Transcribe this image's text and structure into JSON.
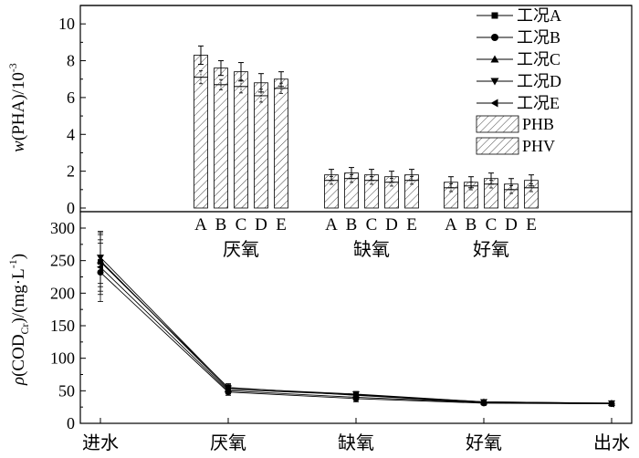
{
  "chart_data": [
    {
      "type": "bar",
      "ylabel": "w(PHA)/10⁻³",
      "ylabel_parts": {
        "w": "w",
        "rest": "(PHA)/10",
        "sup": "-3"
      },
      "ylim": [
        0,
        11
      ],
      "yticks": [
        "0",
        "2",
        "4",
        "6",
        "8",
        "10"
      ],
      "group_labels": [
        "厌氧",
        "缺氧",
        "好氧"
      ],
      "categories": [
        "A",
        "B",
        "C",
        "D",
        "E"
      ],
      "series": [
        {
          "name": "PHB",
          "values": [
            [
              7.1,
              6.7,
              6.6,
              6.1,
              6.5
            ],
            [
              1.5,
              1.6,
              1.5,
              1.4,
              1.5
            ],
            [
              1.1,
              1.2,
              1.3,
              1.0,
              1.1
            ]
          ]
        },
        {
          "name": "PHV",
          "values": [
            [
              1.2,
              0.9,
              0.8,
              0.7,
              0.5
            ],
            [
              0.3,
              0.3,
              0.3,
              0.3,
              0.3
            ],
            [
              0.3,
              0.2,
              0.3,
              0.3,
              0.4
            ]
          ]
        }
      ],
      "totals": [
        [
          8.3,
          7.6,
          7.4,
          6.8,
          7.0
        ],
        [
          1.8,
          1.9,
          1.8,
          1.7,
          1.8
        ],
        [
          1.4,
          1.4,
          1.6,
          1.3,
          1.5
        ]
      ],
      "errors": [
        [
          0.5,
          0.4,
          0.5,
          0.5,
          0.4
        ],
        [
          0.3,
          0.3,
          0.3,
          0.3,
          0.3
        ],
        [
          0.3,
          0.3,
          0.3,
          0.3,
          0.3
        ]
      ],
      "legend": {
        "placement": "top-right",
        "line_entries": [
          {
            "name": "工况A",
            "marker": "square"
          },
          {
            "name": "工况B",
            "marker": "circle"
          },
          {
            "name": "工况C",
            "marker": "triangle-up"
          },
          {
            "name": "工况D",
            "marker": "triangle-down"
          },
          {
            "name": "工况E",
            "marker": "triangle-left"
          }
        ],
        "bar_entries": [
          "PHB",
          "PHV"
        ]
      }
    },
    {
      "type": "line",
      "ylabel_parts": {
        "rho": "ρ",
        "p1": "(COD",
        "sub": "Cr",
        "p2": ")/(mg·L",
        "sup": "-1",
        "p3": ")"
      },
      "ylim": [
        0,
        300
      ],
      "yticks": [
        "0",
        "50",
        "100",
        "150",
        "200",
        "250",
        "300"
      ],
      "x": [
        "进水",
        "厌氧",
        "缺氧",
        "好氧",
        "出水"
      ],
      "series": [
        {
          "name": "工况A",
          "marker": "square",
          "values": [
            248,
            55,
            43,
            32,
            30
          ],
          "errors": [
            45,
            6,
            5,
            3,
            2
          ]
        },
        {
          "name": "工况B",
          "marker": "circle",
          "values": [
            232,
            48,
            38,
            31,
            30
          ],
          "errors": [
            45,
            5,
            5,
            3,
            2
          ]
        },
        {
          "name": "工况C",
          "marker": "triangle-up",
          "values": [
            250,
            52,
            44,
            33,
            31
          ],
          "errors": [
            40,
            6,
            4,
            3,
            2
          ]
        },
        {
          "name": "工况D",
          "marker": "triangle-down",
          "values": [
            255,
            54,
            45,
            33,
            31
          ],
          "errors": [
            40,
            6,
            4,
            3,
            2
          ]
        },
        {
          "name": "工况E",
          "marker": "triangle-left",
          "values": [
            240,
            50,
            40,
            32,
            30
          ],
          "errors": [
            42,
            5,
            5,
            3,
            2
          ]
        }
      ]
    }
  ]
}
